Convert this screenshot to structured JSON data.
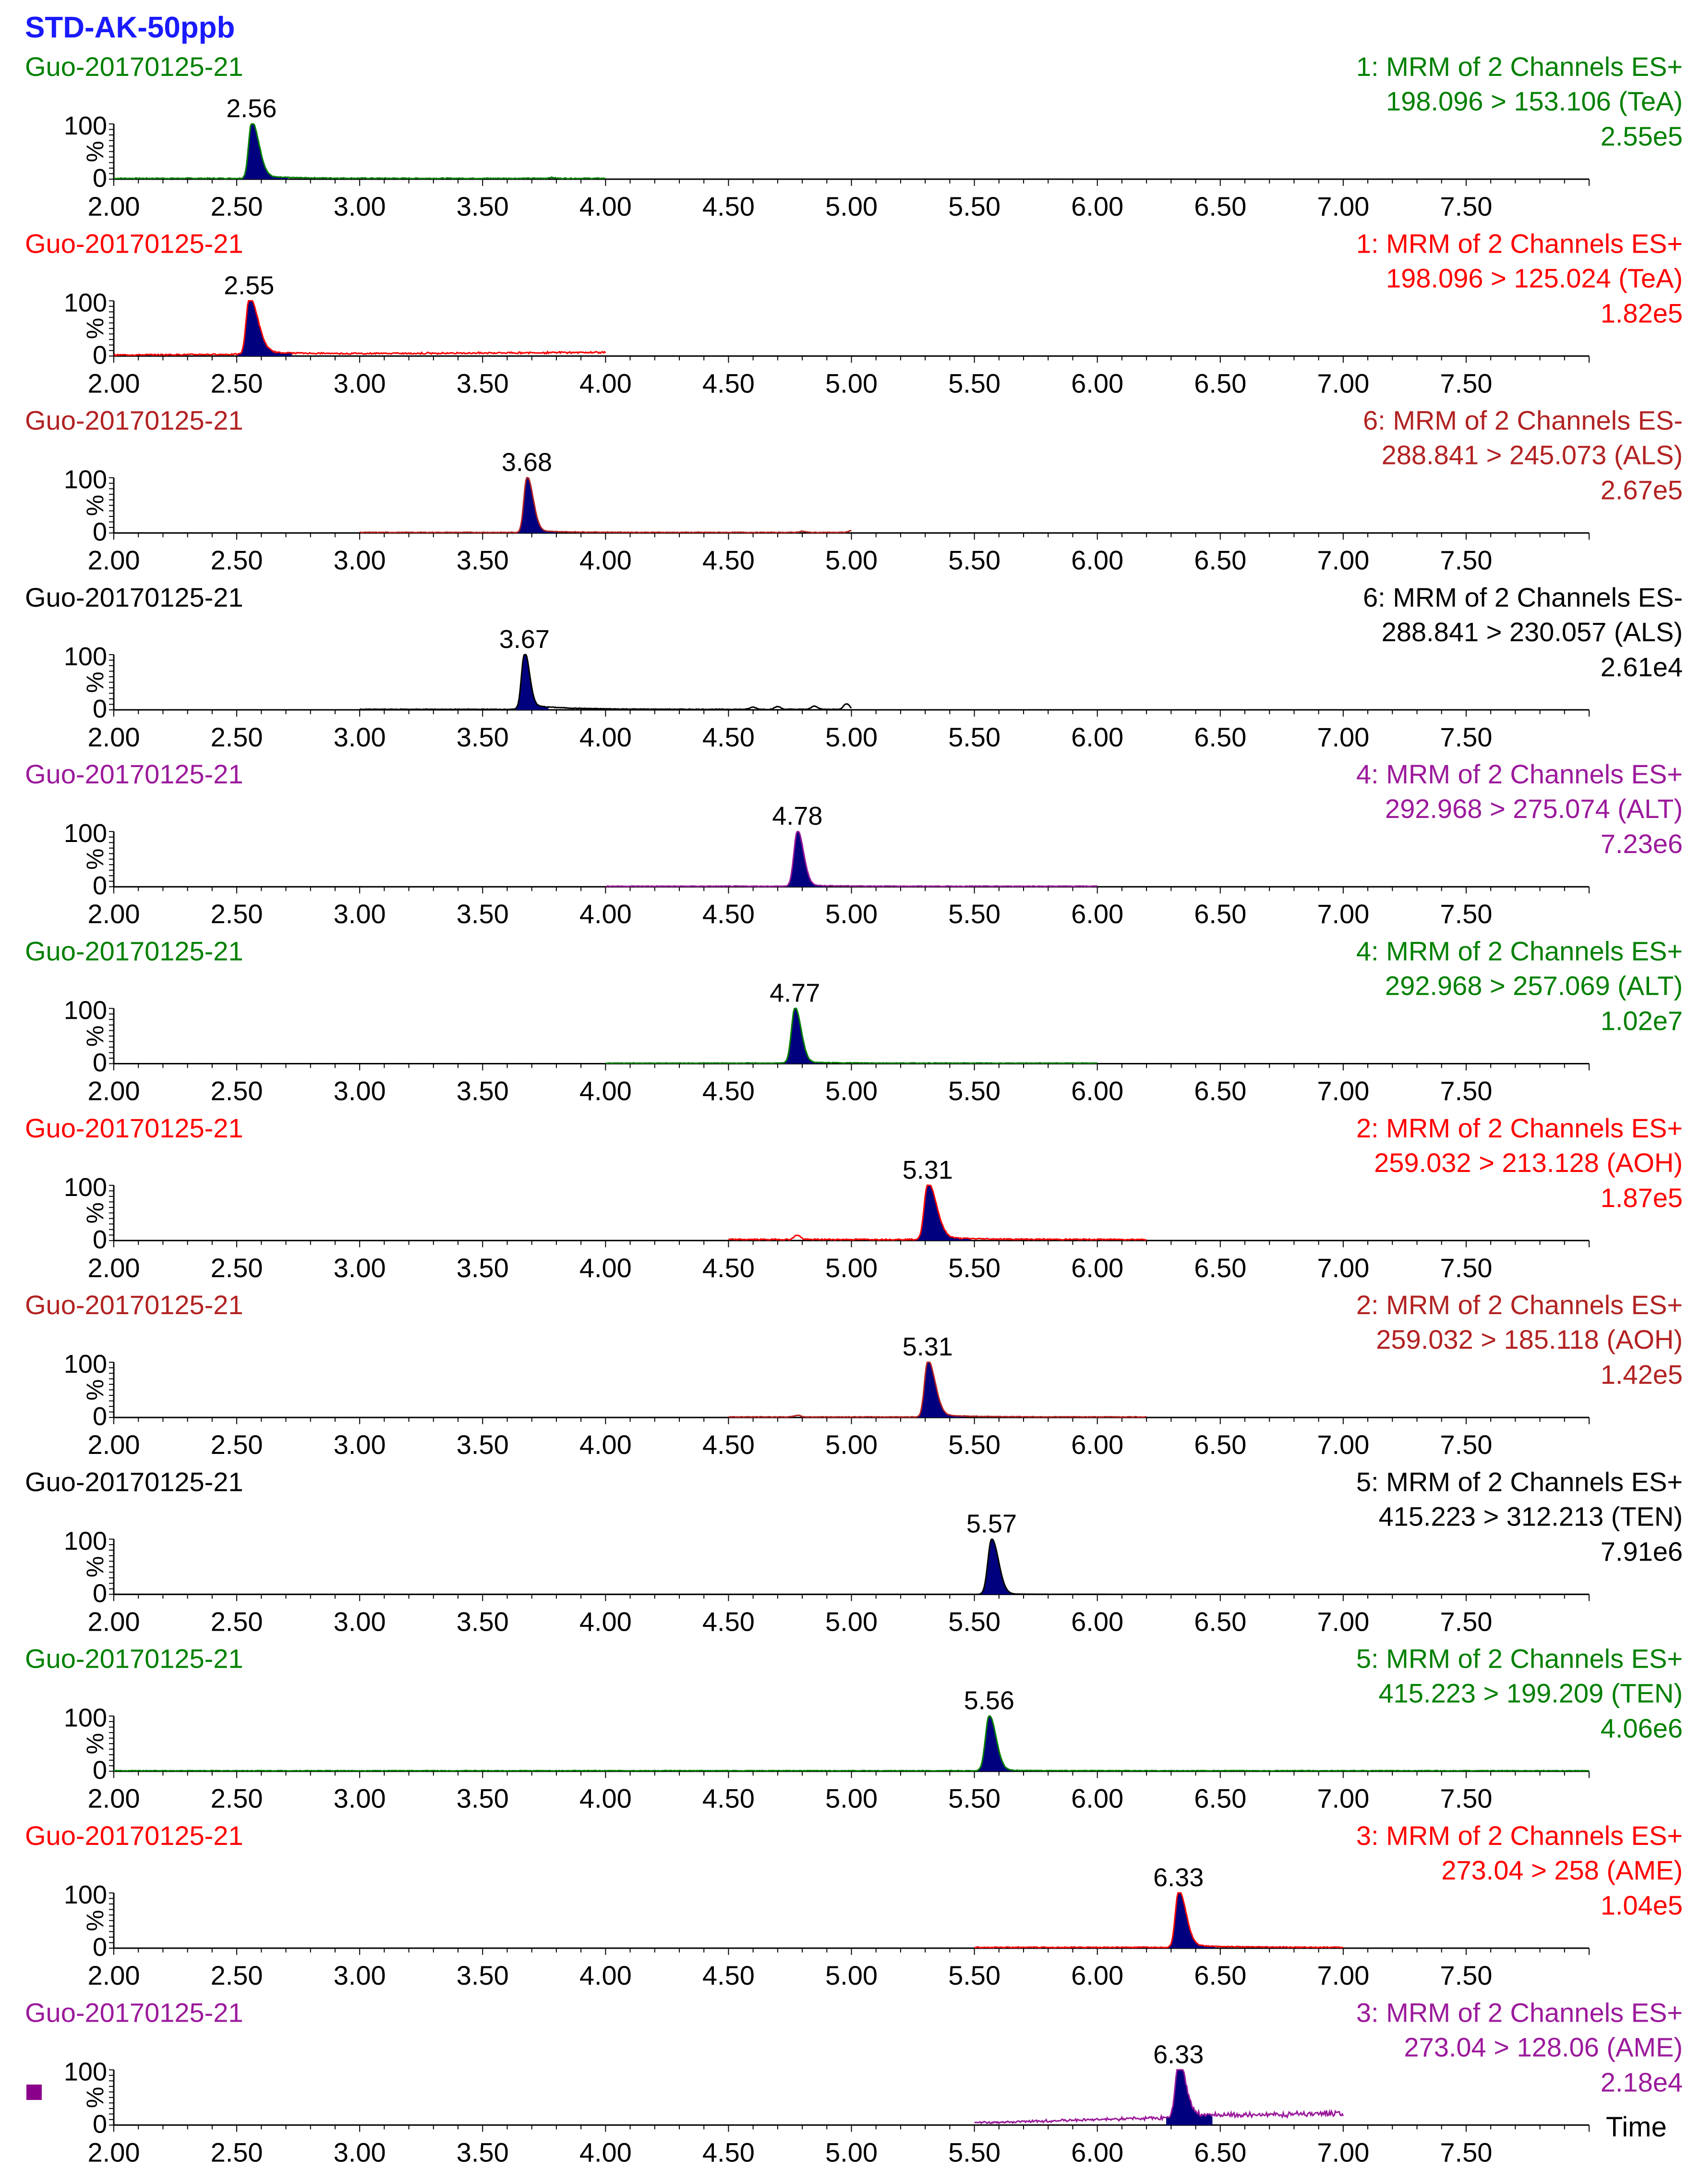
{
  "title": "STD-AK-50ppb",
  "title_color": "#1a1aff",
  "x_axis_label": "Time",
  "marker_color": "#8b008b",
  "chart_data": {
    "type": "line",
    "shared_x_range": [
      2.0,
      8.0
    ],
    "x_tick_labels": [
      "2.00",
      "2.50",
      "3.00",
      "3.50",
      "4.00",
      "4.50",
      "5.00",
      "5.50",
      "6.00",
      "6.50",
      "7.00",
      "7.50"
    ],
    "y_range": [
      0,
      100
    ],
    "y_tick_labels": [
      "100",
      "0"
    ],
    "y_unit": "%",
    "peak_fill_color": "#00007f",
    "panels": [
      {
        "sample": "Guo-20170125-21",
        "function": "1: MRM of 2 Channels ES+",
        "transition": "198.096 > 153.106 (TeA)",
        "intensity": "2.55e5",
        "color": "#008000",
        "peak_rt": 2.56,
        "peak_label": "2.56",
        "trace_range": [
          2.0,
          4.0
        ],
        "baseline": 1.5,
        "peak_sigma_left": 0.012,
        "peak_sigma_right": 0.03,
        "tail": 4,
        "extra_bumps": [
          [
            3.78,
            1.5
          ]
        ]
      },
      {
        "sample": "Guo-20170125-21",
        "function": "1: MRM of 2 Channels ES+",
        "transition": "198.096 > 125.024 (TeA)",
        "intensity": "1.82e5",
        "color": "#ff0000",
        "peak_rt": 2.55,
        "peak_label": "2.55",
        "trace_range": [
          2.0,
          4.0
        ],
        "baseline": 2,
        "peak_sigma_left": 0.012,
        "peak_sigma_right": 0.035,
        "tail": 6,
        "extra_bumps": [],
        "drift": 6
      },
      {
        "sample": "Guo-20170125-21",
        "function": "6: MRM of 2 Channels ES-",
        "transition": "288.841 > 245.073 (ALS)",
        "intensity": "2.67e5",
        "color": "#b22222",
        "peak_rt": 3.68,
        "peak_label": "3.68",
        "trace_range": [
          3.0,
          5.0
        ],
        "baseline": 1,
        "peak_sigma_left": 0.012,
        "peak_sigma_right": 0.025,
        "tail": 3,
        "extra_bumps": [
          [
            4.8,
            2
          ],
          [
            5.0,
            3
          ]
        ]
      },
      {
        "sample": "Guo-20170125-21",
        "function": "6: MRM of 2 Channels ES-",
        "transition": "288.841 > 230.057 (ALS)",
        "intensity": "2.61e4",
        "color": "#000000",
        "peak_rt": 3.67,
        "peak_label": "3.67",
        "trace_range": [
          3.0,
          5.0
        ],
        "baseline": 1,
        "peak_sigma_left": 0.012,
        "peak_sigma_right": 0.02,
        "tail": 8,
        "extra_bumps": [
          [
            4.6,
            4
          ],
          [
            4.7,
            5
          ],
          [
            4.85,
            6
          ],
          [
            4.98,
            10
          ]
        ]
      },
      {
        "sample": "Guo-20170125-21",
        "function": "4: MRM of 2 Channels ES+",
        "transition": "292.968 > 275.074 (ALT)",
        "intensity": "7.23e6",
        "color": "#9b1a9b",
        "peak_rt": 4.78,
        "peak_label": "4.78",
        "trace_range": [
          4.0,
          6.0
        ],
        "baseline": 1,
        "peak_sigma_left": 0.014,
        "peak_sigma_right": 0.025,
        "tail": 2,
        "extra_bumps": []
      },
      {
        "sample": "Guo-20170125-21",
        "function": "4: MRM of 2 Channels ES+",
        "transition": "292.968 > 257.069 (ALT)",
        "intensity": "1.02e7",
        "color": "#008000",
        "peak_rt": 4.77,
        "peak_label": "4.77",
        "trace_range": [
          4.0,
          6.0
        ],
        "baseline": 1,
        "peak_sigma_left": 0.014,
        "peak_sigma_right": 0.025,
        "tail": 2,
        "extra_bumps": []
      },
      {
        "sample": "Guo-20170125-21",
        "function": "2: MRM of 2 Channels ES+",
        "transition": "259.032 > 213.128 (AOH)",
        "intensity": "1.87e5",
        "color": "#ff0000",
        "peak_rt": 5.31,
        "peak_label": "5.31",
        "trace_range": [
          4.5,
          6.2
        ],
        "baseline": 2,
        "peak_sigma_left": 0.014,
        "peak_sigma_right": 0.035,
        "tail": 5,
        "extra_bumps": [
          [
            4.78,
            8
          ]
        ]
      },
      {
        "sample": "Guo-20170125-21",
        "function": "2: MRM of 2 Channels ES+",
        "transition": "259.032 > 185.118 (AOH)",
        "intensity": "1.42e5",
        "color": "#b22222",
        "peak_rt": 5.31,
        "peak_label": "5.31",
        "trace_range": [
          4.5,
          6.2
        ],
        "baseline": 1,
        "peak_sigma_left": 0.013,
        "peak_sigma_right": 0.03,
        "tail": 4,
        "extra_bumps": [
          [
            4.78,
            3
          ]
        ]
      },
      {
        "sample": "Guo-20170125-21",
        "function": "5: MRM of 2 Channels ES+",
        "transition": "415.223 > 312.213 (TEN)",
        "intensity": "7.91e6",
        "color": "#000000",
        "peak_rt": 5.57,
        "peak_label": "5.57",
        "trace_range": [
          2.0,
          8.0
        ],
        "baseline": 0,
        "peak_sigma_left": 0.015,
        "peak_sigma_right": 0.028,
        "tail": 1,
        "extra_bumps": []
      },
      {
        "sample": "Guo-20170125-21",
        "function": "5: MRM of 2 Channels ES+",
        "transition": "415.223 > 199.209 (TEN)",
        "intensity": "4.06e6",
        "color": "#008000",
        "peak_rt": 5.56,
        "peak_label": "5.56",
        "trace_range": [
          2.0,
          8.0
        ],
        "baseline": 1,
        "peak_sigma_left": 0.015,
        "peak_sigma_right": 0.028,
        "tail": 1,
        "extra_bumps": []
      },
      {
        "sample": "Guo-20170125-21",
        "function": "3: MRM of 2 Channels ES+",
        "transition": "273.04 > 258 (AME)",
        "intensity": "1.04e5",
        "color": "#ff0000",
        "peak_rt": 6.33,
        "peak_label": "6.33",
        "trace_range": [
          5.5,
          7.0
        ],
        "baseline": 1.5,
        "peak_sigma_left": 0.013,
        "peak_sigma_right": 0.03,
        "tail": 5,
        "extra_bumps": []
      },
      {
        "sample": "Guo-20170125-21",
        "function": "3: MRM of 2 Channels ES+",
        "transition": "273.04 > 128.06 (AME)",
        "intensity": "2.18e4",
        "color": "#9b1a9b",
        "peak_rt": 6.33,
        "peak_label": "6.33",
        "trace_range": [
          5.5,
          7.0
        ],
        "baseline": 4,
        "peak_sigma_left": 0.013,
        "peak_sigma_right": 0.028,
        "tail": 8,
        "extra_bumps": [],
        "drift": 22
      }
    ]
  }
}
